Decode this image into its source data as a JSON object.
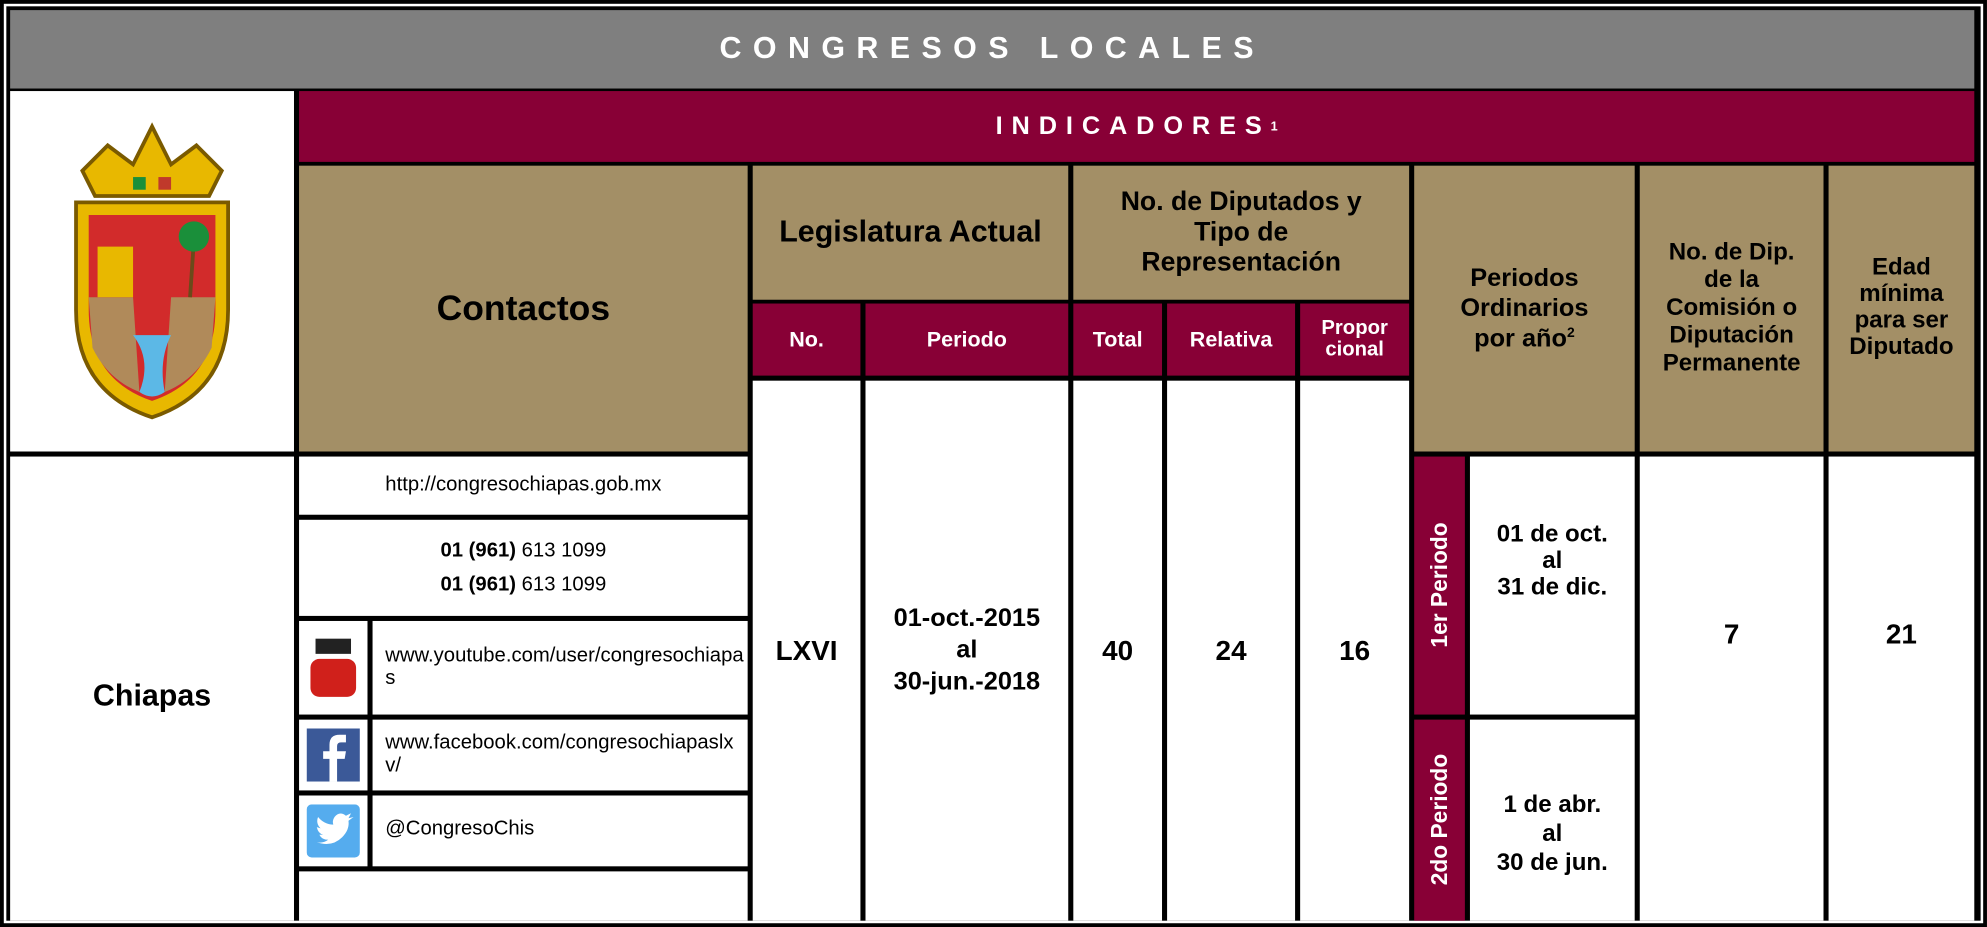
{
  "header": {
    "title": "CONGRESOS LOCALES"
  },
  "indicators": {
    "title": "INDICADORES",
    "note": "1"
  },
  "columns": {
    "contacts": "Contactos",
    "legislature": "Legislatura Actual",
    "legislature_no": "No.",
    "legislature_period": "Periodo",
    "deputies": "No. de Diputados y Tipo de Representación",
    "total": "Total",
    "relative": "Relativa",
    "proportional": [
      "Propor",
      "cional"
    ],
    "periods": "Periodos Ordinarios por año",
    "periods_note": "2",
    "permanent": "No. de Dip. de la Comisión o Diputación Permanente",
    "min_age": "Edad mínima para ser Diputado"
  },
  "row": {
    "state": "Chiapas",
    "website": "http://congresochiapas.gob.mx",
    "phones": [
      {
        "code": "01 (961)",
        "number": "613 1099"
      },
      {
        "code": "01 (961)",
        "number": "613 1099"
      }
    ],
    "youtube": "www.youtube.com/user/congresochiapas",
    "facebook": "www.facebook.com/congresochiapaslxv/",
    "twitter": "@CongresoChis",
    "legislature": "LXVI",
    "period": [
      "01-oct.-2015",
      "al",
      "30-jun.-2018"
    ],
    "total": 40,
    "relative": 24,
    "proportional": 16,
    "sessions": [
      {
        "label": "1er Periodo",
        "dates": [
          "01 de oct.",
          "al",
          "31 de dic."
        ]
      },
      {
        "label": "2do Periodo",
        "dates": [
          "1 de abr.",
          "al",
          "30 de jun."
        ]
      }
    ],
    "permanent": 7,
    "min_age": 21
  }
}
